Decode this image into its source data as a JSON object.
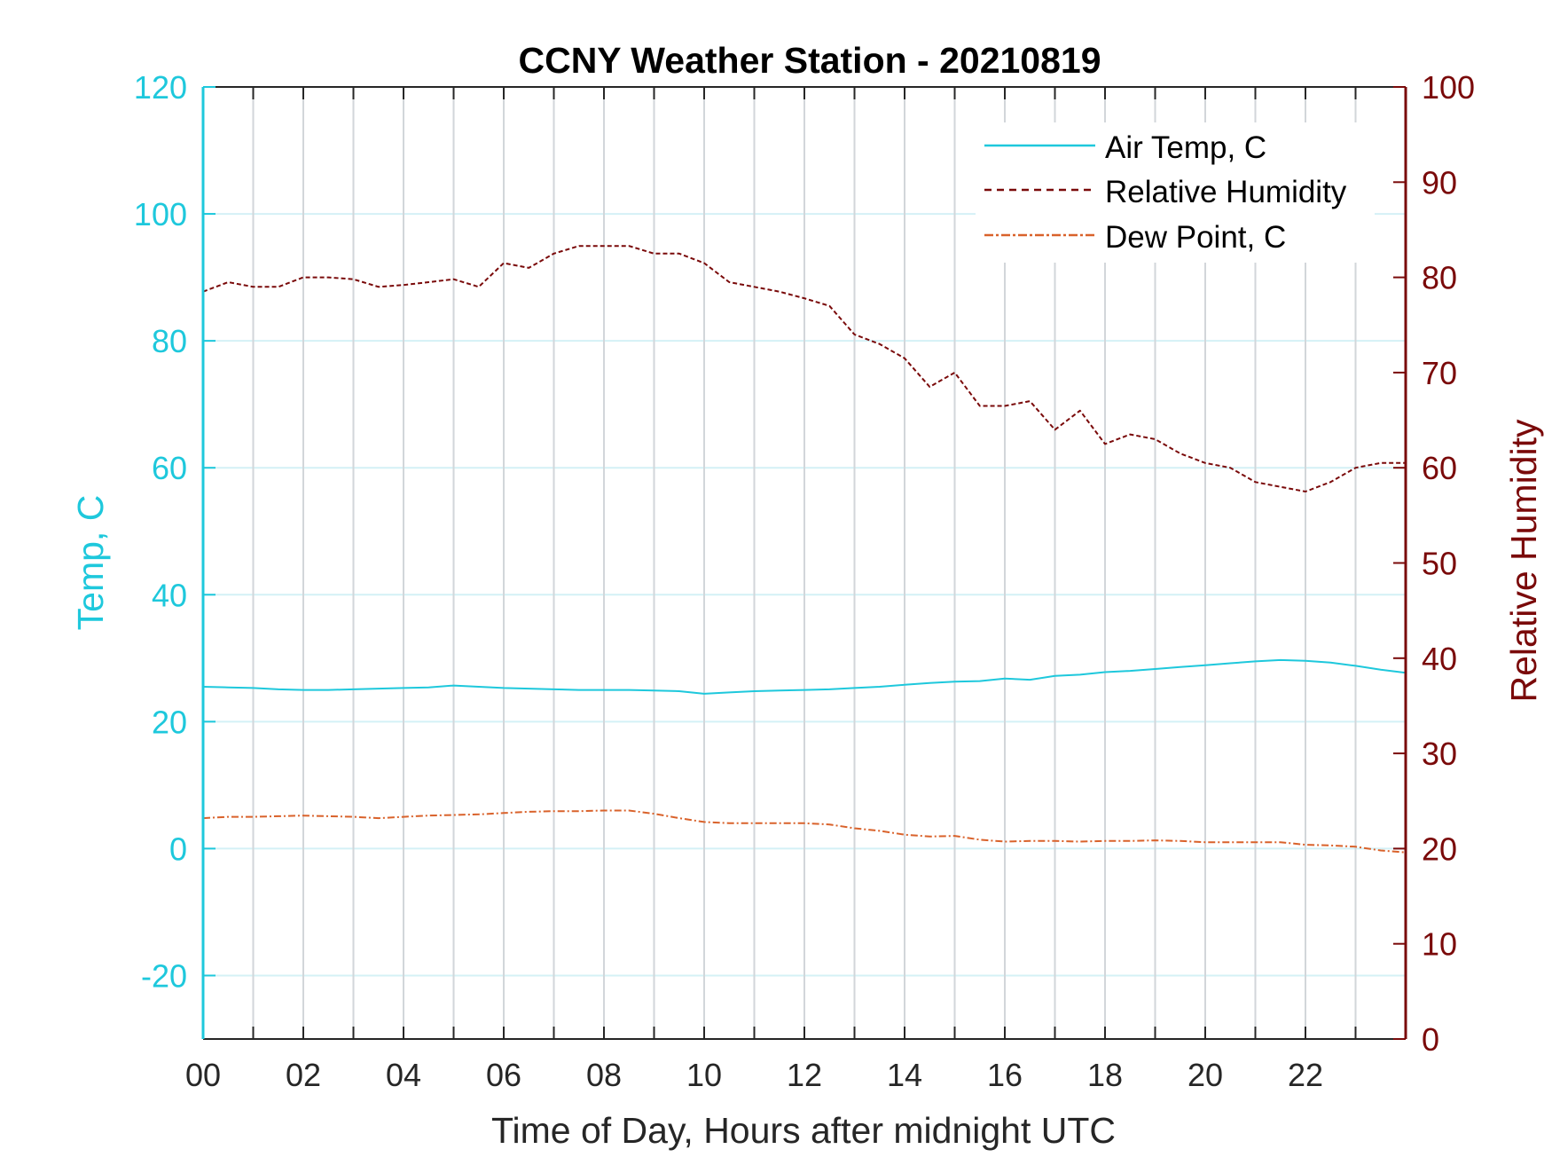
{
  "chart_data": {
    "type": "line",
    "title": "CCNY Weather Station - 20210819",
    "xlabel": "Time of Day, Hours after midnight UTC",
    "ylabel_left": "Temp, C",
    "ylabel_right": "Relative Humidity",
    "xlim": [
      0,
      24
    ],
    "ylim_left": [
      -30,
      120
    ],
    "ylim_right": [
      0,
      100
    ],
    "x_ticks": [
      0,
      2,
      4,
      6,
      8,
      10,
      12,
      14,
      16,
      18,
      20,
      22
    ],
    "x_tick_labels": [
      "00",
      "02",
      "04",
      "06",
      "08",
      "10",
      "12",
      "14",
      "16",
      "18",
      "20",
      "22"
    ],
    "y_left_ticks": [
      -20,
      0,
      20,
      40,
      60,
      80,
      100,
      120
    ],
    "y_right_ticks": [
      0,
      10,
      20,
      30,
      40,
      50,
      60,
      70,
      80,
      90,
      100
    ],
    "grid": true,
    "legend_position": "top-right",
    "colors": {
      "air_temp": "#1ec8dc",
      "humidity": "#7a0a0a",
      "dew_point": "#d9622b",
      "left_axis": "#1ec8dc",
      "right_axis": "#7a0a0a",
      "grid_vertical": "#d2d6da",
      "grid_horizontal": "#d4f1f6"
    },
    "series": [
      {
        "name": "Air Temp, C",
        "axis": "left",
        "style": "solid",
        "x": [
          0,
          0.5,
          1,
          1.5,
          2,
          2.5,
          3,
          3.5,
          4,
          4.5,
          5,
          5.5,
          6,
          6.5,
          7,
          7.5,
          8,
          8.5,
          9,
          9.5,
          10,
          10.5,
          11,
          11.5,
          12,
          12.5,
          13,
          13.5,
          14,
          14.5,
          15,
          15.5,
          16,
          16.5,
          17,
          17.5,
          18,
          18.5,
          19,
          19.5,
          20,
          20.5,
          21,
          21.5,
          22,
          22.5,
          23,
          23.5,
          24
        ],
        "y": [
          25.5,
          25.4,
          25.3,
          25.1,
          25.0,
          25.0,
          25.1,
          25.2,
          25.3,
          25.4,
          25.7,
          25.5,
          25.3,
          25.2,
          25.1,
          25.0,
          25.0,
          25.0,
          24.9,
          24.8,
          24.4,
          24.6,
          24.8,
          24.9,
          25.0,
          25.1,
          25.3,
          25.5,
          25.8,
          26.1,
          26.3,
          26.4,
          26.8,
          26.6,
          27.2,
          27.4,
          27.8,
          28.0,
          28.3,
          28.6,
          28.9,
          29.2,
          29.5,
          29.7,
          29.6,
          29.3,
          28.8,
          28.2,
          27.7
        ]
      },
      {
        "name": "Relative Humidity",
        "axis": "right",
        "style": "dashed",
        "x": [
          0,
          0.5,
          1,
          1.5,
          2,
          2.5,
          3,
          3.5,
          4,
          4.5,
          5,
          5.5,
          6,
          6.5,
          7,
          7.5,
          8,
          8.5,
          9,
          9.5,
          10,
          10.5,
          11,
          11.5,
          12,
          12.5,
          13,
          13.5,
          14,
          14.5,
          15,
          15.5,
          16,
          16.5,
          17,
          17.5,
          18,
          18.5,
          19,
          19.5,
          20,
          20.5,
          21,
          21.5,
          22,
          22.5,
          23,
          23.5,
          24
        ],
        "y": [
          78.5,
          79.5,
          79.0,
          79.0,
          80.0,
          80.0,
          79.8,
          79.0,
          79.2,
          79.5,
          79.8,
          79.0,
          81.5,
          81.0,
          82.5,
          83.3,
          83.3,
          83.3,
          82.5,
          82.5,
          81.5,
          79.5,
          79.0,
          78.5,
          77.8,
          77.0,
          74.0,
          73.0,
          71.5,
          68.5,
          70.0,
          66.5,
          66.5,
          67.0,
          64.0,
          66.0,
          62.5,
          63.5,
          63.0,
          61.5,
          60.5,
          60.0,
          58.5,
          58.0,
          57.5,
          58.5,
          60.0,
          60.5,
          60.5
        ]
      },
      {
        "name": "Dew Point, C",
        "axis": "left",
        "style": "dashdot",
        "x": [
          0,
          0.5,
          1,
          1.5,
          2,
          2.5,
          3,
          3.5,
          4,
          4.5,
          5,
          5.5,
          6,
          6.5,
          7,
          7.5,
          8,
          8.5,
          9,
          9.5,
          10,
          10.5,
          11,
          11.5,
          12,
          12.5,
          13,
          13.5,
          14,
          14.5,
          15,
          15.5,
          16,
          16.5,
          17,
          17.5,
          18,
          18.5,
          19,
          19.5,
          20,
          20.5,
          21,
          21.5,
          22,
          22.5,
          23,
          23.5,
          24
        ],
        "y": [
          4.8,
          5.0,
          5.0,
          5.1,
          5.2,
          5.1,
          5.0,
          4.8,
          5.0,
          5.2,
          5.3,
          5.4,
          5.6,
          5.8,
          5.9,
          5.9,
          6.0,
          6.0,
          5.5,
          4.8,
          4.2,
          4.0,
          4.0,
          4.0,
          4.0,
          3.8,
          3.2,
          2.8,
          2.2,
          1.9,
          2.0,
          1.4,
          1.1,
          1.2,
          1.2,
          1.1,
          1.2,
          1.2,
          1.3,
          1.2,
          1.0,
          1.0,
          1.0,
          1.0,
          0.6,
          0.5,
          0.3,
          -0.3,
          -0.6
        ]
      }
    ]
  }
}
